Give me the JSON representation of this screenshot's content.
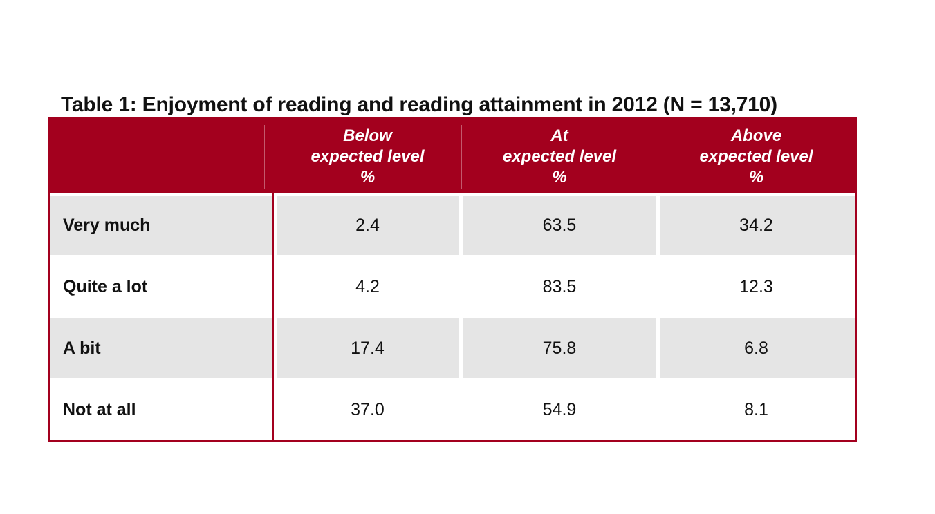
{
  "table": {
    "title": "Table 1: Enjoyment of reading and reading attainment in 2012 (N = 13,710)",
    "columns": [
      {
        "line1": "Below",
        "line2": "expected level",
        "line3": "%"
      },
      {
        "line1": "At",
        "line2": "expected level",
        "line3": "%"
      },
      {
        "line1": "Above",
        "line2": "expected level",
        "line3": "%"
      }
    ],
    "rows": [
      {
        "label": "Very much",
        "values": [
          "2.4",
          "63.5",
          "34.2"
        ]
      },
      {
        "label": "Quite a lot",
        "values": [
          "4.2",
          "83.5",
          "12.3"
        ]
      },
      {
        "label": "A bit",
        "values": [
          "17.4",
          "75.8",
          "6.8"
        ]
      },
      {
        "label": "Not at all",
        "values": [
          "37.0",
          "54.9",
          "8.1"
        ]
      }
    ],
    "colors": {
      "header_bg": "#a3001e",
      "shaded_row": "#e5e5e5",
      "border": "#a3001e"
    }
  }
}
